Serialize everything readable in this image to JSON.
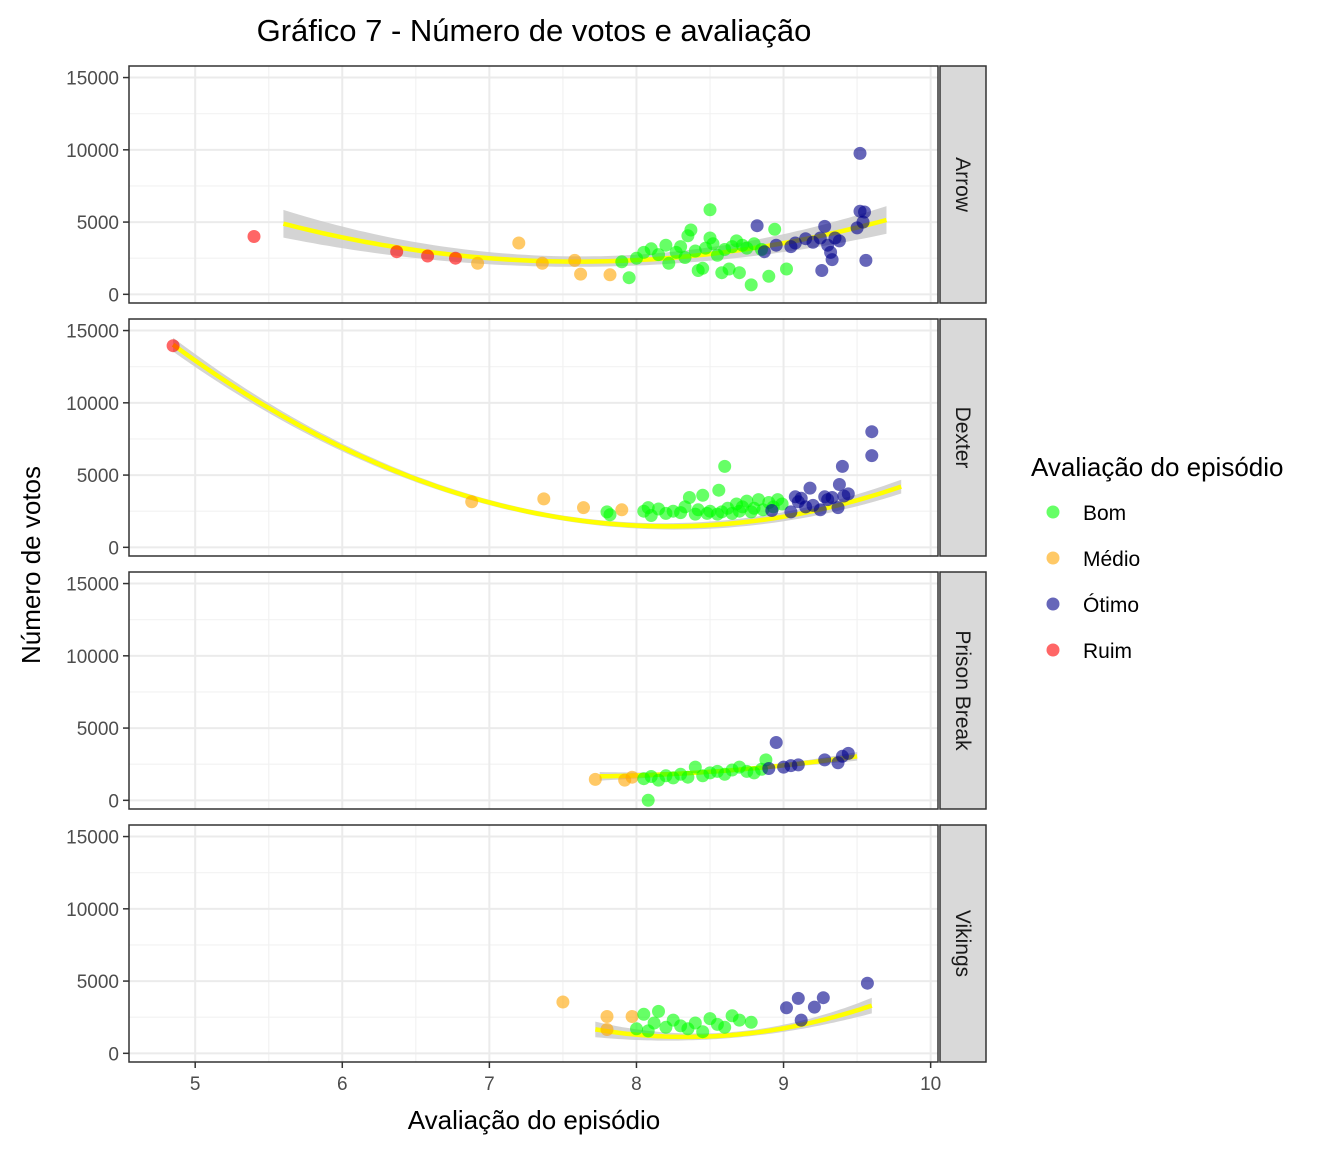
{
  "chart_data": {
    "type": "scatter",
    "title": "Gráfico 7 - Número de votos e avaliação",
    "xlabel": "Avaliação do episódio",
    "ylabel": "Número de votos",
    "xlim": [
      4.55,
      10.05
    ],
    "ylim": [
      -600,
      15800
    ],
    "x_ticks": [
      5,
      6,
      7,
      8,
      9,
      10
    ],
    "y_ticks": [
      0,
      5000,
      10000,
      15000
    ],
    "grid": true,
    "facet_by": "series",
    "legend": {
      "title": "Avaliação do episódio",
      "placement": "right",
      "entries": [
        {
          "name": "Bom",
          "color": "#00ff00"
        },
        {
          "name": "Médio",
          "color": "#ffa500"
        },
        {
          "name": "Ótimo",
          "color": "#00008b"
        },
        {
          "name": "Ruim",
          "color": "#ff0000"
        }
      ]
    },
    "fit_line_color": "#ffff00",
    "fit_band_color": "#cccccc",
    "panels": [
      {
        "name": "Arrow",
        "fit": {
          "x_range": [
            5.6,
            9.7
          ],
          "coef": [
            40081,
            -9950.1,
            654.49
          ],
          "band": 800
        },
        "points": [
          {
            "x": 5.4,
            "y": 4000,
            "c": "Ruim"
          },
          {
            "x": 6.37,
            "y": 2950,
            "c": "Ruim"
          },
          {
            "x": 6.58,
            "y": 2650,
            "c": "Ruim"
          },
          {
            "x": 6.77,
            "y": 2500,
            "c": "Ruim"
          },
          {
            "x": 6.92,
            "y": 2150,
            "c": "Médio"
          },
          {
            "x": 7.2,
            "y": 3550,
            "c": "Médio"
          },
          {
            "x": 7.36,
            "y": 2150,
            "c": "Médio"
          },
          {
            "x": 7.58,
            "y": 2350,
            "c": "Médio"
          },
          {
            "x": 7.62,
            "y": 1400,
            "c": "Médio"
          },
          {
            "x": 7.82,
            "y": 1350,
            "c": "Médio"
          },
          {
            "x": 7.9,
            "y": 2250,
            "c": "Bom"
          },
          {
            "x": 7.95,
            "y": 1150,
            "c": "Bom"
          },
          {
            "x": 8.0,
            "y": 2500,
            "c": "Bom"
          },
          {
            "x": 8.05,
            "y": 2900,
            "c": "Bom"
          },
          {
            "x": 8.1,
            "y": 3150,
            "c": "Bom"
          },
          {
            "x": 8.15,
            "y": 2750,
            "c": "Bom"
          },
          {
            "x": 8.2,
            "y": 3400,
            "c": "Bom"
          },
          {
            "x": 8.22,
            "y": 2150,
            "c": "Bom"
          },
          {
            "x": 8.27,
            "y": 2900,
            "c": "Bom"
          },
          {
            "x": 8.3,
            "y": 3300,
            "c": "Bom"
          },
          {
            "x": 8.33,
            "y": 2550,
            "c": "Bom"
          },
          {
            "x": 8.35,
            "y": 4050,
            "c": "Bom"
          },
          {
            "x": 8.37,
            "y": 4450,
            "c": "Bom"
          },
          {
            "x": 8.4,
            "y": 3000,
            "c": "Bom"
          },
          {
            "x": 8.42,
            "y": 1650,
            "c": "Bom"
          },
          {
            "x": 8.45,
            "y": 1800,
            "c": "Bom"
          },
          {
            "x": 8.47,
            "y": 3200,
            "c": "Bom"
          },
          {
            "x": 8.5,
            "y": 5850,
            "c": "Bom"
          },
          {
            "x": 8.5,
            "y": 3900,
            "c": "Bom"
          },
          {
            "x": 8.52,
            "y": 3500,
            "c": "Bom"
          },
          {
            "x": 8.55,
            "y": 2700,
            "c": "Bom"
          },
          {
            "x": 8.58,
            "y": 1500,
            "c": "Bom"
          },
          {
            "x": 8.6,
            "y": 3100,
            "c": "Bom"
          },
          {
            "x": 8.63,
            "y": 1750,
            "c": "Bom"
          },
          {
            "x": 8.65,
            "y": 3300,
            "c": "Bom"
          },
          {
            "x": 8.68,
            "y": 3700,
            "c": "Bom"
          },
          {
            "x": 8.7,
            "y": 1500,
            "c": "Bom"
          },
          {
            "x": 8.72,
            "y": 3400,
            "c": "Bom"
          },
          {
            "x": 8.75,
            "y": 3200,
            "c": "Bom"
          },
          {
            "x": 8.78,
            "y": 650,
            "c": "Bom"
          },
          {
            "x": 8.8,
            "y": 3500,
            "c": "Bom"
          },
          {
            "x": 8.85,
            "y": 3100,
            "c": "Bom"
          },
          {
            "x": 8.9,
            "y": 1250,
            "c": "Bom"
          },
          {
            "x": 8.94,
            "y": 4500,
            "c": "Bom"
          },
          {
            "x": 9.02,
            "y": 1750,
            "c": "Bom"
          },
          {
            "x": 8.82,
            "y": 4750,
            "c": "Ótimo"
          },
          {
            "x": 8.87,
            "y": 2950,
            "c": "Ótimo"
          },
          {
            "x": 8.95,
            "y": 3400,
            "c": "Ótimo"
          },
          {
            "x": 9.05,
            "y": 3300,
            "c": "Ótimo"
          },
          {
            "x": 9.08,
            "y": 3550,
            "c": "Ótimo"
          },
          {
            "x": 9.15,
            "y": 3850,
            "c": "Ótimo"
          },
          {
            "x": 9.2,
            "y": 3600,
            "c": "Ótimo"
          },
          {
            "x": 9.25,
            "y": 3900,
            "c": "Ótimo"
          },
          {
            "x": 9.26,
            "y": 1650,
            "c": "Ótimo"
          },
          {
            "x": 9.28,
            "y": 4700,
            "c": "Ótimo"
          },
          {
            "x": 9.3,
            "y": 3400,
            "c": "Ótimo"
          },
          {
            "x": 9.32,
            "y": 2900,
            "c": "Ótimo"
          },
          {
            "x": 9.33,
            "y": 2400,
            "c": "Ótimo"
          },
          {
            "x": 9.35,
            "y": 3900,
            "c": "Ótimo"
          },
          {
            "x": 9.38,
            "y": 3700,
            "c": "Ótimo"
          },
          {
            "x": 9.5,
            "y": 4600,
            "c": "Ótimo"
          },
          {
            "x": 9.52,
            "y": 5750,
            "c": "Ótimo"
          },
          {
            "x": 9.52,
            "y": 9750,
            "c": "Ótimo"
          },
          {
            "x": 9.54,
            "y": 5000,
            "c": "Ótimo"
          },
          {
            "x": 9.55,
            "y": 5700,
            "c": "Ótimo"
          },
          {
            "x": 9.56,
            "y": 2350,
            "c": "Ótimo"
          }
        ]
      },
      {
        "name": "Dexter",
        "fit": {
          "x_range": [
            4.85,
            9.8
          ],
          "coef": [
            76185,
            -18179,
            1105.5
          ],
          "band": 400
        },
        "points": [
          {
            "x": 4.85,
            "y": 13950,
            "c": "Ruim"
          },
          {
            "x": 6.88,
            "y": 3150,
            "c": "Médio"
          },
          {
            "x": 7.37,
            "y": 3350,
            "c": "Médio"
          },
          {
            "x": 7.64,
            "y": 2750,
            "c": "Médio"
          },
          {
            "x": 7.9,
            "y": 2600,
            "c": "Médio"
          },
          {
            "x": 7.8,
            "y": 2450,
            "c": "Bom"
          },
          {
            "x": 7.82,
            "y": 2250,
            "c": "Bom"
          },
          {
            "x": 8.05,
            "y": 2500,
            "c": "Bom"
          },
          {
            "x": 8.08,
            "y": 2750,
            "c": "Bom"
          },
          {
            "x": 8.1,
            "y": 2200,
            "c": "Bom"
          },
          {
            "x": 8.15,
            "y": 2650,
            "c": "Bom"
          },
          {
            "x": 8.2,
            "y": 2350,
            "c": "Bom"
          },
          {
            "x": 8.25,
            "y": 2500,
            "c": "Bom"
          },
          {
            "x": 8.3,
            "y": 2400,
            "c": "Bom"
          },
          {
            "x": 8.33,
            "y": 2800,
            "c": "Bom"
          },
          {
            "x": 8.36,
            "y": 3450,
            "c": "Bom"
          },
          {
            "x": 8.4,
            "y": 2300,
            "c": "Bom"
          },
          {
            "x": 8.42,
            "y": 2600,
            "c": "Bom"
          },
          {
            "x": 8.45,
            "y": 3600,
            "c": "Bom"
          },
          {
            "x": 8.48,
            "y": 2350,
            "c": "Bom"
          },
          {
            "x": 8.5,
            "y": 2500,
            "c": "Bom"
          },
          {
            "x": 8.55,
            "y": 2300,
            "c": "Bom"
          },
          {
            "x": 8.56,
            "y": 3950,
            "c": "Bom"
          },
          {
            "x": 8.58,
            "y": 2450,
            "c": "Bom"
          },
          {
            "x": 8.6,
            "y": 5600,
            "c": "Bom"
          },
          {
            "x": 8.62,
            "y": 2700,
            "c": "Bom"
          },
          {
            "x": 8.65,
            "y": 2350,
            "c": "Bom"
          },
          {
            "x": 8.68,
            "y": 3000,
            "c": "Bom"
          },
          {
            "x": 8.7,
            "y": 2500,
            "c": "Bom"
          },
          {
            "x": 8.72,
            "y": 2800,
            "c": "Bom"
          },
          {
            "x": 8.75,
            "y": 3200,
            "c": "Bom"
          },
          {
            "x": 8.78,
            "y": 2450,
            "c": "Bom"
          },
          {
            "x": 8.8,
            "y": 2700,
            "c": "Bom"
          },
          {
            "x": 8.83,
            "y": 3300,
            "c": "Bom"
          },
          {
            "x": 8.86,
            "y": 2600,
            "c": "Bom"
          },
          {
            "x": 8.9,
            "y": 3100,
            "c": "Bom"
          },
          {
            "x": 8.93,
            "y": 2800,
            "c": "Bom"
          },
          {
            "x": 8.96,
            "y": 3300,
            "c": "Bom"
          },
          {
            "x": 8.99,
            "y": 3000,
            "c": "Bom"
          },
          {
            "x": 8.92,
            "y": 2550,
            "c": "Ótimo"
          },
          {
            "x": 9.05,
            "y": 2450,
            "c": "Ótimo"
          },
          {
            "x": 9.08,
            "y": 3500,
            "c": "Ótimo"
          },
          {
            "x": 9.1,
            "y": 3150,
            "c": "Ótimo"
          },
          {
            "x": 9.12,
            "y": 3400,
            "c": "Ótimo"
          },
          {
            "x": 9.15,
            "y": 2800,
            "c": "Ótimo"
          },
          {
            "x": 9.18,
            "y": 4100,
            "c": "Ótimo"
          },
          {
            "x": 9.2,
            "y": 2900,
            "c": "Ótimo"
          },
          {
            "x": 9.25,
            "y": 2600,
            "c": "Ótimo"
          },
          {
            "x": 9.28,
            "y": 3500,
            "c": "Ótimo"
          },
          {
            "x": 9.3,
            "y": 3300,
            "c": "Ótimo"
          },
          {
            "x": 9.33,
            "y": 3450,
            "c": "Ótimo"
          },
          {
            "x": 9.37,
            "y": 2750,
            "c": "Ótimo"
          },
          {
            "x": 9.38,
            "y": 4350,
            "c": "Ótimo"
          },
          {
            "x": 9.4,
            "y": 5600,
            "c": "Ótimo"
          },
          {
            "x": 9.41,
            "y": 3550,
            "c": "Ótimo"
          },
          {
            "x": 9.44,
            "y": 3700,
            "c": "Ótimo"
          },
          {
            "x": 9.6,
            "y": 8000,
            "c": "Ótimo"
          },
          {
            "x": 9.6,
            "y": 6350,
            "c": "Ótimo"
          }
        ]
      },
      {
        "name": "Prison Break",
        "fit": {
          "x_range": [
            7.75,
            9.5
          ],
          "coef": [
            22825,
            -5604.6,
            370.8
          ],
          "band": 250
        },
        "points": [
          {
            "x": 7.72,
            "y": 1450,
            "c": "Médio"
          },
          {
            "x": 7.92,
            "y": 1400,
            "c": "Médio"
          },
          {
            "x": 7.97,
            "y": 1600,
            "c": "Médio"
          },
          {
            "x": 8.05,
            "y": 1500,
            "c": "Bom"
          },
          {
            "x": 8.08,
            "y": 0,
            "c": "Bom"
          },
          {
            "x": 8.1,
            "y": 1650,
            "c": "Bom"
          },
          {
            "x": 8.15,
            "y": 1400,
            "c": "Bom"
          },
          {
            "x": 8.2,
            "y": 1700,
            "c": "Bom"
          },
          {
            "x": 8.25,
            "y": 1550,
            "c": "Bom"
          },
          {
            "x": 8.3,
            "y": 1800,
            "c": "Bom"
          },
          {
            "x": 8.35,
            "y": 1600,
            "c": "Bom"
          },
          {
            "x": 8.4,
            "y": 2300,
            "c": "Bom"
          },
          {
            "x": 8.45,
            "y": 1700,
            "c": "Bom"
          },
          {
            "x": 8.5,
            "y": 1900,
            "c": "Bom"
          },
          {
            "x": 8.55,
            "y": 2000,
            "c": "Bom"
          },
          {
            "x": 8.6,
            "y": 1800,
            "c": "Bom"
          },
          {
            "x": 8.65,
            "y": 2100,
            "c": "Bom"
          },
          {
            "x": 8.7,
            "y": 2300,
            "c": "Bom"
          },
          {
            "x": 8.75,
            "y": 2000,
            "c": "Bom"
          },
          {
            "x": 8.8,
            "y": 1900,
            "c": "Bom"
          },
          {
            "x": 8.85,
            "y": 2150,
            "c": "Bom"
          },
          {
            "x": 8.88,
            "y": 2800,
            "c": "Bom"
          },
          {
            "x": 8.9,
            "y": 2200,
            "c": "Ótimo"
          },
          {
            "x": 8.95,
            "y": 4000,
            "c": "Ótimo"
          },
          {
            "x": 9.0,
            "y": 2300,
            "c": "Ótimo"
          },
          {
            "x": 9.05,
            "y": 2400,
            "c": "Ótimo"
          },
          {
            "x": 9.1,
            "y": 2450,
            "c": "Ótimo"
          },
          {
            "x": 9.28,
            "y": 2800,
            "c": "Ótimo"
          },
          {
            "x": 9.37,
            "y": 2600,
            "c": "Ótimo"
          },
          {
            "x": 9.4,
            "y": 3050,
            "c": "Ótimo"
          },
          {
            "x": 9.44,
            "y": 3250,
            "c": "Ótimo"
          }
        ]
      },
      {
        "name": "Vikings",
        "fit": {
          "x_range": [
            7.72,
            9.6
          ],
          "coef": [
            95900,
            -22730,
            1363
          ],
          "band": 450
        },
        "points": [
          {
            "x": 7.5,
            "y": 3550,
            "c": "Médio"
          },
          {
            "x": 7.8,
            "y": 2550,
            "c": "Médio"
          },
          {
            "x": 7.8,
            "y": 1650,
            "c": "Médio"
          },
          {
            "x": 7.97,
            "y": 2550,
            "c": "Médio"
          },
          {
            "x": 8.0,
            "y": 1700,
            "c": "Bom"
          },
          {
            "x": 8.05,
            "y": 2700,
            "c": "Bom"
          },
          {
            "x": 8.08,
            "y": 1550,
            "c": "Bom"
          },
          {
            "x": 8.12,
            "y": 2100,
            "c": "Bom"
          },
          {
            "x": 8.15,
            "y": 2900,
            "c": "Bom"
          },
          {
            "x": 8.2,
            "y": 1800,
            "c": "Bom"
          },
          {
            "x": 8.25,
            "y": 2300,
            "c": "Bom"
          },
          {
            "x": 8.3,
            "y": 1900,
            "c": "Bom"
          },
          {
            "x": 8.35,
            "y": 1700,
            "c": "Bom"
          },
          {
            "x": 8.4,
            "y": 2100,
            "c": "Bom"
          },
          {
            "x": 8.45,
            "y": 1500,
            "c": "Bom"
          },
          {
            "x": 8.5,
            "y": 2400,
            "c": "Bom"
          },
          {
            "x": 8.55,
            "y": 2000,
            "c": "Bom"
          },
          {
            "x": 8.6,
            "y": 1800,
            "c": "Bom"
          },
          {
            "x": 8.65,
            "y": 2600,
            "c": "Bom"
          },
          {
            "x": 8.7,
            "y": 2300,
            "c": "Bom"
          },
          {
            "x": 8.78,
            "y": 2150,
            "c": "Bom"
          },
          {
            "x": 9.02,
            "y": 3150,
            "c": "Ótimo"
          },
          {
            "x": 9.1,
            "y": 3800,
            "c": "Ótimo"
          },
          {
            "x": 9.12,
            "y": 2300,
            "c": "Ótimo"
          },
          {
            "x": 9.21,
            "y": 3200,
            "c": "Ótimo"
          },
          {
            "x": 9.27,
            "y": 3850,
            "c": "Ótimo"
          },
          {
            "x": 9.57,
            "y": 4850,
            "c": "Ótimo"
          }
        ]
      }
    ]
  }
}
